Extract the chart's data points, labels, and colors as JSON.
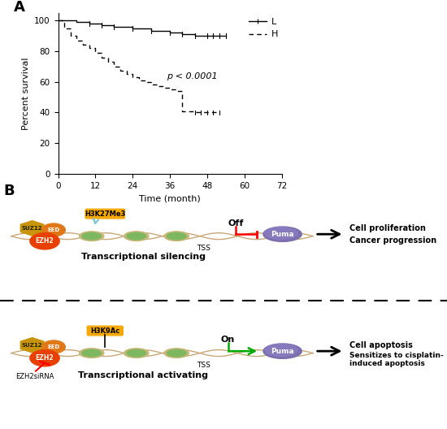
{
  "panel_A_label": "A",
  "panel_B_label": "B",
  "xlabel": "Time (month)",
  "ylabel": "Percent survival",
  "pvalue_text": "p < 0.0001",
  "legend_L": "L",
  "legend_H": "H",
  "xlim": [
    0,
    72
  ],
  "ylim": [
    0,
    105
  ],
  "xticks": [
    0,
    12,
    24,
    36,
    48,
    60,
    72
  ],
  "yticks": [
    0,
    20,
    40,
    60,
    80,
    100
  ],
  "L_x": [
    0,
    1,
    3,
    6,
    10,
    14,
    18,
    24,
    30,
    36,
    40,
    44,
    48,
    52,
    54
  ],
  "L_y": [
    100,
    100,
    100,
    99,
    98,
    97,
    96,
    95,
    93,
    92,
    91,
    90,
    90,
    90,
    90
  ],
  "H_x": [
    0,
    2,
    4,
    6,
    8,
    10,
    12,
    14,
    16,
    18,
    20,
    22,
    24,
    26,
    28,
    30,
    32,
    34,
    36,
    38,
    40,
    42,
    44,
    46,
    48,
    50,
    52
  ],
  "H_y": [
    100,
    95,
    90,
    87,
    84,
    82,
    79,
    76,
    73,
    70,
    67,
    65,
    63,
    61,
    60,
    58,
    57,
    56,
    55,
    54,
    41,
    41,
    40,
    40,
    40,
    40,
    40
  ],
  "bg_color": "#ffffff",
  "line_color_L": "#000000",
  "line_color_H": "#000000"
}
